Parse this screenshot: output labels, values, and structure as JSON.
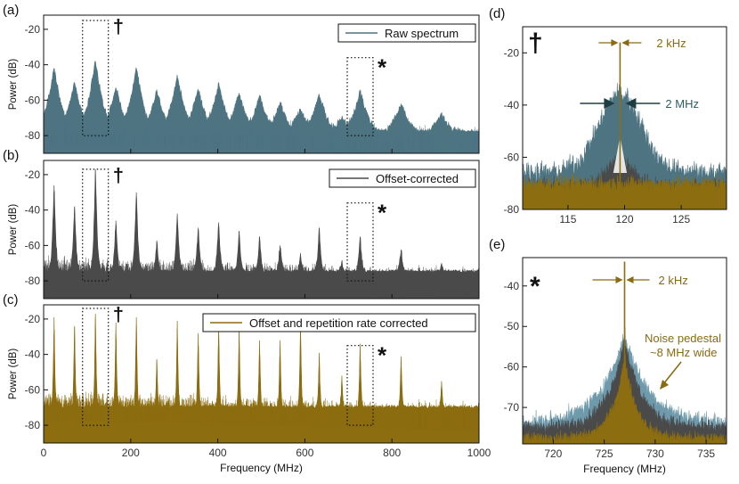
{
  "colors": {
    "raw": "#4e7482",
    "raw_light": "#6e9aab",
    "offset": "#4a4a4a",
    "corrected": "#8c6d10",
    "annot_gold": "#8a6a12",
    "annot_teal": "#2f5e63"
  },
  "chart_data": [
    {
      "panel": "(a)",
      "type": "line",
      "ylabel": "Power (dB)",
      "xlim": [
        0,
        1000
      ],
      "ylim": [
        -90,
        -12
      ],
      "yticks": [
        -20,
        -40,
        -60,
        -80
      ],
      "xticks": [
        0,
        200,
        400,
        600,
        800,
        1000
      ],
      "legend": "Raw spectrum",
      "legend_placement": "top-right",
      "floor": -79,
      "noise": 4,
      "peak_width": 9,
      "peaks": [
        [
          24,
          -42
        ],
        [
          71,
          -50
        ],
        [
          119,
          -38
        ],
        [
          166,
          -53
        ],
        [
          213,
          -42
        ],
        [
          260,
          -55
        ],
        [
          307,
          -46
        ],
        [
          355,
          -54
        ],
        [
          402,
          -51
        ],
        [
          449,
          -56
        ],
        [
          496,
          -58
        ],
        [
          543,
          -62
        ],
        [
          590,
          -65
        ],
        [
          633,
          -57
        ],
        [
          685,
          -70
        ],
        [
          727,
          -55
        ],
        [
          821,
          -62
        ],
        [
          914,
          -68
        ]
      ],
      "markers": [
        {
          "symbol": "†",
          "at": 119
        },
        {
          "symbol": "*",
          "at": 727
        }
      ]
    },
    {
      "panel": "(b)",
      "type": "line",
      "ylabel": "Power (dB)",
      "xlim": [
        0,
        1000
      ],
      "ylim": [
        -90,
        -12
      ],
      "yticks": [
        -20,
        -40,
        -60,
        -80
      ],
      "xticks": [
        0,
        200,
        400,
        600,
        800,
        1000
      ],
      "legend": "Offset-corrected",
      "legend_placement": "top-right",
      "floor": -76,
      "noise": 3.5,
      "peak_width": 2,
      "peaks": [
        [
          24,
          -26
        ],
        [
          71,
          -38
        ],
        [
          119,
          -17
        ],
        [
          166,
          -46
        ],
        [
          213,
          -30
        ],
        [
          260,
          -58
        ],
        [
          307,
          -42
        ],
        [
          355,
          -50
        ],
        [
          402,
          -47
        ],
        [
          449,
          -52
        ],
        [
          496,
          -55
        ],
        [
          543,
          -60
        ],
        [
          590,
          -65
        ],
        [
          633,
          -50
        ],
        [
          685,
          -70
        ],
        [
          727,
          -55
        ],
        [
          821,
          -63
        ],
        [
          914,
          -70
        ]
      ],
      "markers": [
        {
          "symbol": "†",
          "at": 119
        },
        {
          "symbol": "*",
          "at": 727
        }
      ]
    },
    {
      "panel": "(c)",
      "type": "line",
      "ylabel": "Power (dB)",
      "xlabel": "Frequency (MHz)",
      "xlim": [
        0,
        1000
      ],
      "ylim": [
        -90,
        -12
      ],
      "yticks": [
        -20,
        -40,
        -60,
        -80
      ],
      "xticks": [
        0,
        200,
        400,
        600,
        800,
        1000
      ],
      "legend": "Offset and repetition rate corrected",
      "legend_placement": "top-right",
      "floor": -71,
      "noise": 4,
      "peak_width": 1,
      "peaks": [
        [
          24,
          -19
        ],
        [
          71,
          -24
        ],
        [
          119,
          -17
        ],
        [
          166,
          -22
        ],
        [
          213,
          -19
        ],
        [
          260,
          -43
        ],
        [
          307,
          -21
        ],
        [
          355,
          -28
        ],
        [
          402,
          -23
        ],
        [
          449,
          -27
        ],
        [
          496,
          -32
        ],
        [
          543,
          -32
        ],
        [
          590,
          -22
        ],
        [
          633,
          -39
        ],
        [
          685,
          -52
        ],
        [
          727,
          -34
        ],
        [
          821,
          -41
        ],
        [
          914,
          -55
        ]
      ],
      "markers": [
        {
          "symbol": "†",
          "at": 119
        },
        {
          "symbol": "*",
          "at": 727
        }
      ]
    },
    {
      "panel": "(d)",
      "type": "line",
      "xlim": [
        111,
        129
      ],
      "ylim": [
        -80,
        -10
      ],
      "yticks": [
        -20,
        -40,
        -60,
        -80
      ],
      "xticks": [
        115,
        120,
        125
      ],
      "center": 119.6,
      "symbol": "†",
      "annotations": [
        {
          "text": "2 kHz",
          "color": "gold"
        },
        {
          "text": "2 MHz",
          "color": "teal"
        }
      ]
    },
    {
      "panel": "(e)",
      "type": "line",
      "xlabel": "Frequency (MHz)",
      "xlim": [
        717,
        737
      ],
      "ylim": [
        -79,
        -33
      ],
      "yticks": [
        -40,
        -50,
        -60,
        -70
      ],
      "xticks": [
        720,
        725,
        730,
        735
      ],
      "center": 727,
      "symbol": "*",
      "annotations": [
        {
          "text": "2 kHz",
          "color": "gold"
        },
        {
          "text": "Noise pedestal",
          "color": "gold"
        },
        {
          "text": "~8 MHz wide",
          "color": "gold"
        }
      ]
    }
  ]
}
